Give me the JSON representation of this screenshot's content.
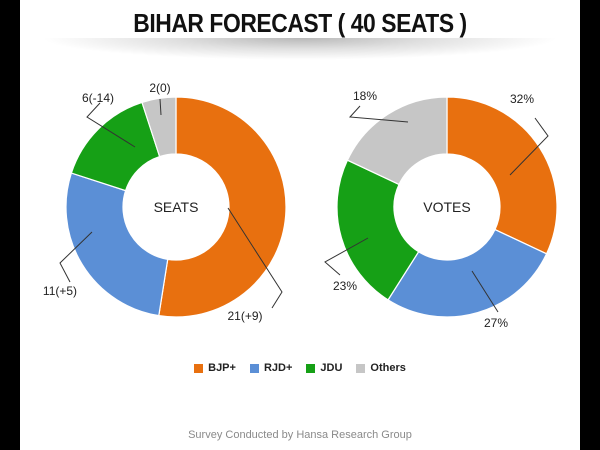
{
  "title": "BIHAR FORECAST ( 40 SEATS )",
  "footer": "Survey Conducted by Hansa Research Group",
  "colors": {
    "BJP+": "#E8700F",
    "RJD+": "#5B8FD6",
    "JDU": "#16A016",
    "Others": "#C6C6C6"
  },
  "legend": [
    {
      "label": "BJP+",
      "color": "#E8700F"
    },
    {
      "label": "RJD+",
      "color": "#5B8FD6"
    },
    {
      "label": "JDU",
      "color": "#16A016"
    },
    {
      "label": "Others",
      "color": "#C6C6C6"
    }
  ],
  "chart_data": [
    {
      "type": "pie",
      "title": "SEATS",
      "categories": [
        "BJP+",
        "RJD+",
        "JDU",
        "Others"
      ],
      "values": [
        21,
        11,
        6,
        2
      ],
      "labels": [
        "21(+9)",
        "11(+5)",
        "6(-14)",
        "2(0)"
      ]
    },
    {
      "type": "pie",
      "title": "VOTES",
      "categories": [
        "BJP+",
        "RJD+",
        "JDU",
        "Others"
      ],
      "values": [
        32,
        27,
        23,
        18
      ],
      "labels": [
        "32%",
        "27%",
        "23%",
        "18%"
      ]
    }
  ]
}
